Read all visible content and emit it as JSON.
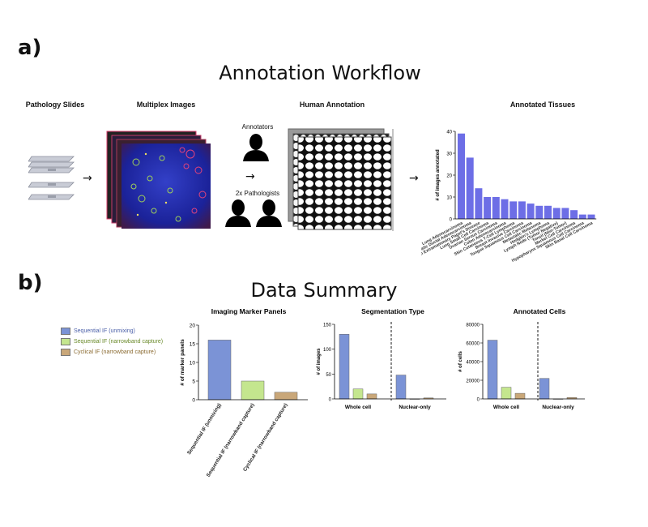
{
  "panel_a": {
    "letter": "a)",
    "title": "Annotation Workflow",
    "col_pathology": "Pathology Slides",
    "col_multiplex": "Multiplex Images",
    "col_human": "Human Annotation",
    "col_annotated": "Annotated Tissues",
    "annotators_label": "Annotators",
    "pathologists_label": "2x Pathologists"
  },
  "panel_b": {
    "letter": "b)",
    "title": "Data Summary",
    "legend": [
      {
        "label": "Sequential IF (unmixing)",
        "color": "#7b93d6"
      },
      {
        "label": "Sequential IF (narrowband capture)",
        "color": "#c4e68e"
      },
      {
        "label": "Cyclical IF (narrowband capture)",
        "color": "#c9a779"
      }
    ]
  },
  "colors": {
    "blue_bar": "#6d6ee6",
    "seq_unmix": "#7b93d6",
    "seq_narrow": "#c4e68e",
    "cyc_narrow": "#c9a779"
  },
  "chart_data": [
    {
      "type": "bar",
      "title": "",
      "ylabel": "# of images annotated",
      "ylim": [
        0,
        40
      ],
      "yticks": [
        0,
        10,
        20,
        30,
        40
      ],
      "categories": [
        "Lung Adenocarcinoma",
        "Pancreatic Ductal Adenocarcinoma",
        "Skin Extramammary Paget's Disease",
        "Lung Small Cell Carcinoma",
        "Ovarian Serous Carcinoma",
        "Colon Adenocarcinoma",
        "Skin Cutaneous T-Cell Lymphoma",
        "Breast Invasive Carcinoma",
        "Tongue Squamous Cell Carcinoma",
        "Metastatic Melanoma",
        "Hodgkin's Lymphoma",
        "Lymph Node (Tumor Negative)",
        "Tonsil (Non-Tumor)",
        "Merkel Cell Carcinoma",
        "Hypopharynx Squamous Cell Carcinoma",
        "Skin Basal Cell Carcinoma"
      ],
      "values": [
        39,
        28,
        14,
        10,
        10,
        9,
        8,
        8,
        7,
        6,
        6,
        5,
        5,
        4,
        2,
        2
      ]
    },
    {
      "type": "bar",
      "title": "Imaging Marker Panels",
      "ylabel": "# of marker panels",
      "ylim": [
        0,
        20
      ],
      "yticks": [
        0,
        5,
        10,
        15,
        20
      ],
      "categories": [
        "Sequential IF (unmixing)",
        "Sequential IF (narrowband capture)",
        "Cyclical IF (narrowband capture)"
      ],
      "values": [
        16,
        5,
        2
      ]
    },
    {
      "type": "bar",
      "title": "Segmentation Type",
      "ylabel": "# of images",
      "ylim": [
        0,
        150
      ],
      "yticks": [
        0,
        50,
        100,
        150
      ],
      "groups": [
        "Whole cell",
        "Nuclear-only"
      ],
      "series": [
        {
          "name": "Sequential IF (unmixing)",
          "values": [
            130,
            48
          ]
        },
        {
          "name": "Sequential IF (narrowband capture)",
          "values": [
            20,
            0
          ]
        },
        {
          "name": "Cyclical IF (narrowband capture)",
          "values": [
            10,
            2
          ]
        }
      ]
    },
    {
      "type": "bar",
      "title": "Annotated Cells",
      "ylabel": "# of cells",
      "ylim": [
        0,
        80000
      ],
      "yticks": [
        0,
        20000,
        40000,
        60000,
        80000
      ],
      "groups": [
        "Whole cell",
        "Nuclear-only"
      ],
      "series": [
        {
          "name": "Sequential IF (unmixing)",
          "values": [
            63000,
            22000
          ]
        },
        {
          "name": "Sequential IF (narrowband capture)",
          "values": [
            12500,
            0
          ]
        },
        {
          "name": "Cyclical IF (narrowband capture)",
          "values": [
            6000,
            1500
          ]
        }
      ]
    }
  ]
}
